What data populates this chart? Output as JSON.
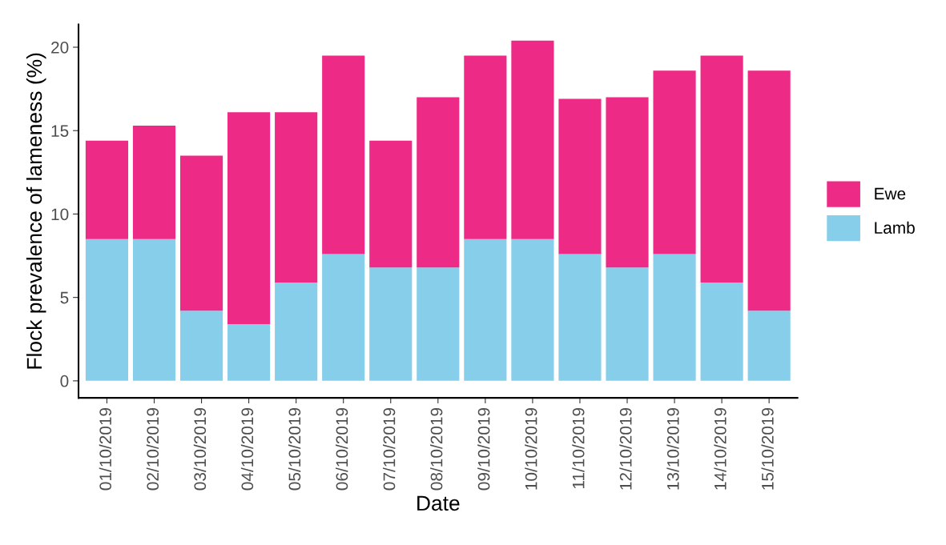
{
  "chart_data": {
    "type": "bar",
    "stacked": true,
    "xlabel": "Date",
    "ylabel": "Flock prevalence of lameness (%)",
    "categories": [
      "01/10/2019",
      "02/10/2019",
      "03/10/2019",
      "04/10/2019",
      "05/10/2019",
      "06/10/2019",
      "07/10/2019",
      "08/10/2019",
      "09/10/2019",
      "10/10/2019",
      "11/10/2019",
      "12/10/2019",
      "13/10/2019",
      "14/10/2019",
      "15/10/2019"
    ],
    "series": [
      {
        "name": "Lamb",
        "color": "#87ceeb",
        "values": [
          8.5,
          8.5,
          4.2,
          3.4,
          5.9,
          7.6,
          6.8,
          6.8,
          8.5,
          8.5,
          7.6,
          6.8,
          7.6,
          5.9,
          4.2
        ]
      },
      {
        "name": "Ewe",
        "color": "#ee2a87",
        "values": [
          5.9,
          6.8,
          9.3,
          12.7,
          10.2,
          11.9,
          7.6,
          10.2,
          11.0,
          11.9,
          9.3,
          10.2,
          11.0,
          13.6,
          14.4
        ]
      }
    ],
    "ylim": [
      -1.02,
      21.36
    ],
    "yticks": [
      0,
      5,
      10,
      15,
      20
    ],
    "grid": false,
    "legend": "right"
  }
}
